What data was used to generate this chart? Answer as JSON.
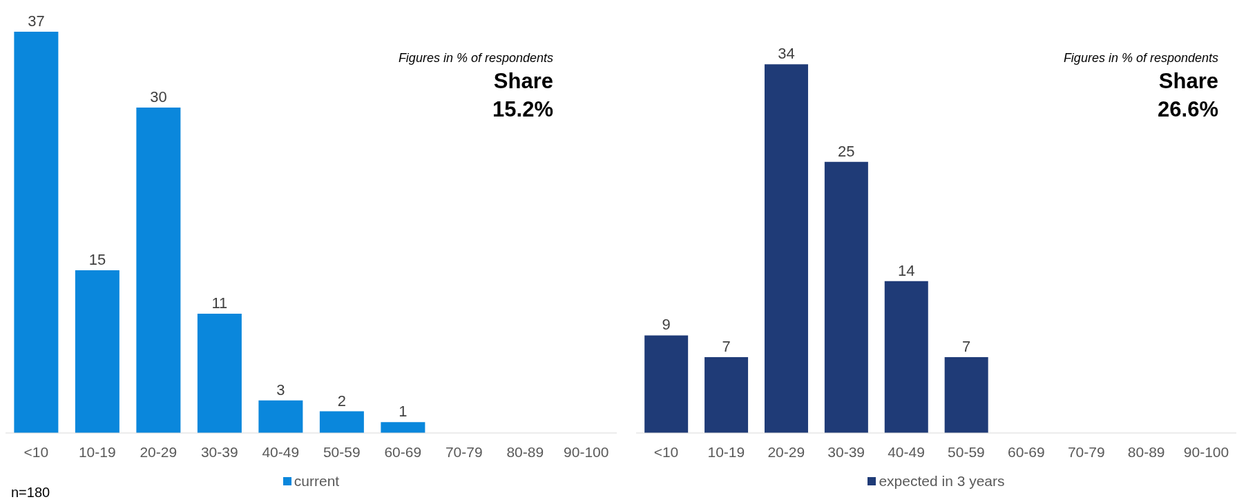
{
  "chart_data": [
    {
      "type": "bar",
      "categories": [
        "<10",
        "10-19",
        "20-29",
        "30-39",
        "40-49",
        "50-59",
        "60-69",
        "70-79",
        "80-89",
        "90-100"
      ],
      "series": [
        {
          "name": "current",
          "color": "#0a87dc",
          "values": [
            37,
            15,
            30,
            11,
            3,
            2,
            1,
            null,
            null,
            null
          ]
        }
      ],
      "data_labels": true,
      "legend": "bottom",
      "grid": false,
      "annotations": [
        "Figures in % of respondents",
        "Share",
        "15.2%",
        "n=180"
      ]
    },
    {
      "type": "bar",
      "categories": [
        "<10",
        "10-19",
        "20-29",
        "30-39",
        "40-49",
        "50-59",
        "60-69",
        "70-79",
        "80-89",
        "90-100"
      ],
      "series": [
        {
          "name": "expected in 3 years",
          "color": "#1f3b77",
          "values": [
            9,
            7,
            34,
            25,
            14,
            7,
            null,
            null,
            null,
            null
          ]
        }
      ],
      "data_labels": true,
      "legend": "bottom",
      "grid": false,
      "annotations": [
        "Figures in % of respondents",
        "Share",
        "26.6%"
      ]
    }
  ]
}
